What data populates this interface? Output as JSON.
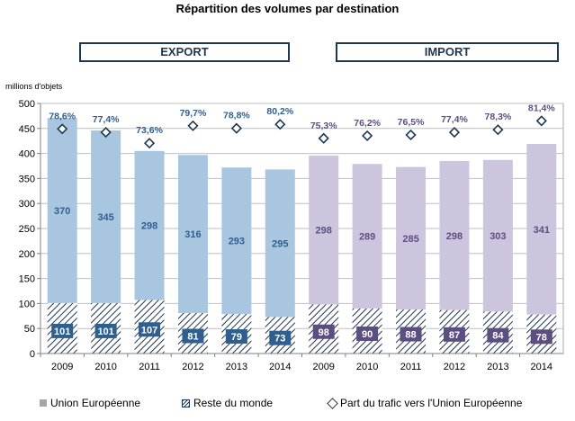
{
  "title": "Répartition des volumes par destination",
  "groups": {
    "export": "EXPORT",
    "import": "IMPORT"
  },
  "units": "millions d'objets",
  "legend": {
    "ue": "Union Européenne",
    "rm": "Reste du monde",
    "part": "Part du trafic vers l'Union Européenne"
  },
  "colors": {
    "export_ue": "#a9c6e0",
    "import_ue": "#cdc5de",
    "export_label_box": "#2f5f8f",
    "import_label_box": "#5d4e82",
    "hatch": "#1f3650",
    "diamond": "#1f3650"
  },
  "chart_data": {
    "type": "bar",
    "stacked": true,
    "categories": [
      "2009",
      "2010",
      "2011",
      "2012",
      "2013",
      "2014",
      "2009",
      "2010",
      "2011",
      "2012",
      "2013",
      "2014"
    ],
    "groups": [
      "export",
      "export",
      "export",
      "export",
      "export",
      "export",
      "import",
      "import",
      "import",
      "import",
      "import",
      "import"
    ],
    "series": [
      {
        "name": "Reste du monde",
        "values": [
          101,
          101,
          107,
          81,
          79,
          73,
          98,
          90,
          88,
          87,
          84,
          78
        ]
      },
      {
        "name": "Union Européenne",
        "values": [
          370,
          345,
          298,
          316,
          293,
          295,
          298,
          289,
          285,
          298,
          303,
          341
        ]
      }
    ],
    "share_series": {
      "name": "Part du trafic vers l'Union Européenne",
      "labels": [
        "78,6%",
        "77,4%",
        "73,6%",
        "79,7%",
        "78,8%",
        "80,2%",
        "75,3%",
        "76,2%",
        "76,5%",
        "77,4%",
        "78,3%",
        "81,4%"
      ],
      "values": [
        78.6,
        77.4,
        73.6,
        79.7,
        78.8,
        80.2,
        75.3,
        76.2,
        76.5,
        77.4,
        78.3,
        81.4
      ]
    },
    "ylim": [
      0,
      500
    ],
    "yticks": [
      "0",
      "50",
      "100",
      "150",
      "200",
      "250",
      "300",
      "350",
      "400",
      "450",
      "500"
    ],
    "ylabel": "millions d'objets",
    "grid": true
  }
}
